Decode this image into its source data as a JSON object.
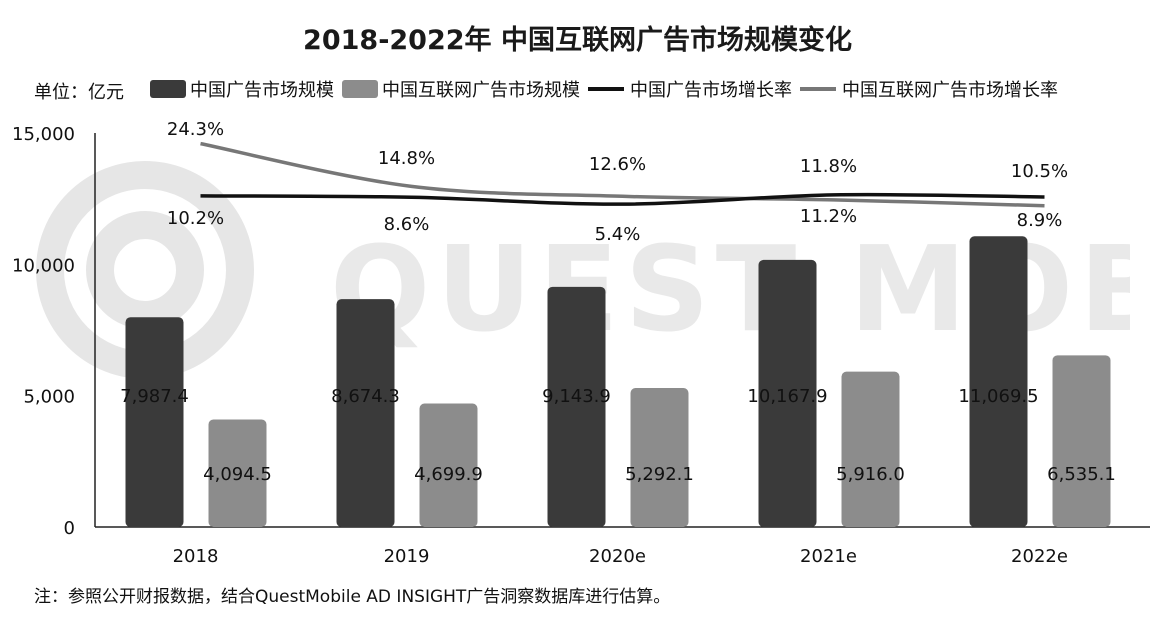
{
  "title": "2018-2022年 中国互联网广告市场规模变化",
  "unit_label": "单位：亿元",
  "note": "注：参照公开财报数据，结合QuestMobile AD INSIGHT广告洞察数据库进行估算。",
  "watermark_text": "QUEST MOBILE",
  "colors": {
    "bar_total": "#3a3a3a",
    "bar_internet": "#8c8c8c",
    "line_total": "#111111",
    "line_internet": "#777777",
    "watermark": "#e6e6e6"
  },
  "legend": [
    {
      "label": "中国广告市场规模",
      "type": "bar",
      "color": "#3a3a3a"
    },
    {
      "label": "中国互联网广告市场规模",
      "type": "bar",
      "color": "#8c8c8c"
    },
    {
      "label": "中国广告市场增长率",
      "type": "line",
      "color": "#111111"
    },
    {
      "label": "中国互联网广告市场增长率",
      "type": "line",
      "color": "#777777"
    }
  ],
  "chart_data": {
    "type": "bar",
    "title": "2018-2022年 中国互联网广告市场规模变化",
    "categories": [
      "2018",
      "2019",
      "2020e",
      "2021e",
      "2022e"
    ],
    "ylim": [
      0,
      15000
    ],
    "yticks": [
      0,
      5000,
      10000,
      15000
    ],
    "ytick_labels": [
      "0",
      "5,000",
      "10,000",
      "15,000"
    ],
    "series": [
      {
        "name": "中国广告市场规模",
        "kind": "bar",
        "values": [
          7987.4,
          8674.3,
          9143.9,
          10167.9,
          11069.5
        ],
        "labels": [
          "7,987.4",
          "8,674.3",
          "9,143.9",
          "10,167.9",
          "11,069.5"
        ]
      },
      {
        "name": "中国互联网广告市场规模",
        "kind": "bar",
        "values": [
          4094.5,
          4699.9,
          5292.1,
          5916.0,
          6535.1
        ],
        "labels": [
          "4,094.5",
          "4,699.9",
          "5,292.1",
          "5,916.0",
          "6,535.1"
        ]
      },
      {
        "name": "中国广告市场增长率",
        "kind": "line",
        "values": [
          10.2,
          8.6,
          5.4,
          11.2,
          8.9
        ],
        "labels": [
          "10.2%",
          "8.6%",
          "5.4%",
          "11.2%",
          "8.9%"
        ]
      },
      {
        "name": "中国互联网广告市场增长率",
        "kind": "line",
        "values": [
          24.3,
          14.8,
          12.6,
          11.8,
          10.5
        ],
        "labels": [
          "24.3%",
          "14.8%",
          "12.6%",
          "11.8%",
          "10.5%"
        ]
      }
    ],
    "legend_position": "top",
    "grid": false
  }
}
